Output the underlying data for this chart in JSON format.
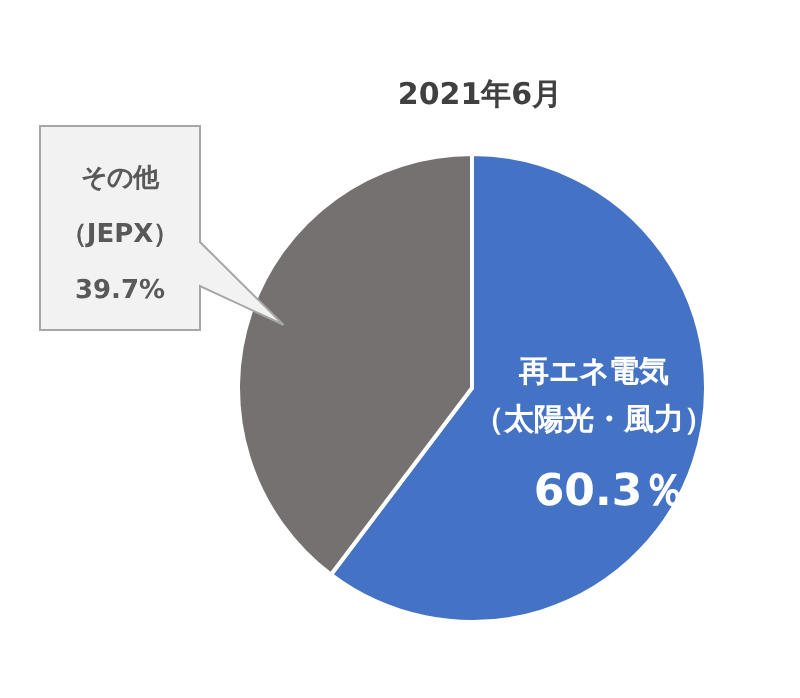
{
  "chart_data": {
    "type": "pie",
    "title": "2021年6月",
    "categories": [
      "再エネ電気（太陽光・風力）",
      "その他（JEPX）"
    ],
    "values": [
      60.3,
      39.7
    ],
    "colors": [
      "#4472c4",
      "#767171"
    ],
    "value_labels": [
      "60.3％",
      "39.7%"
    ]
  }
}
